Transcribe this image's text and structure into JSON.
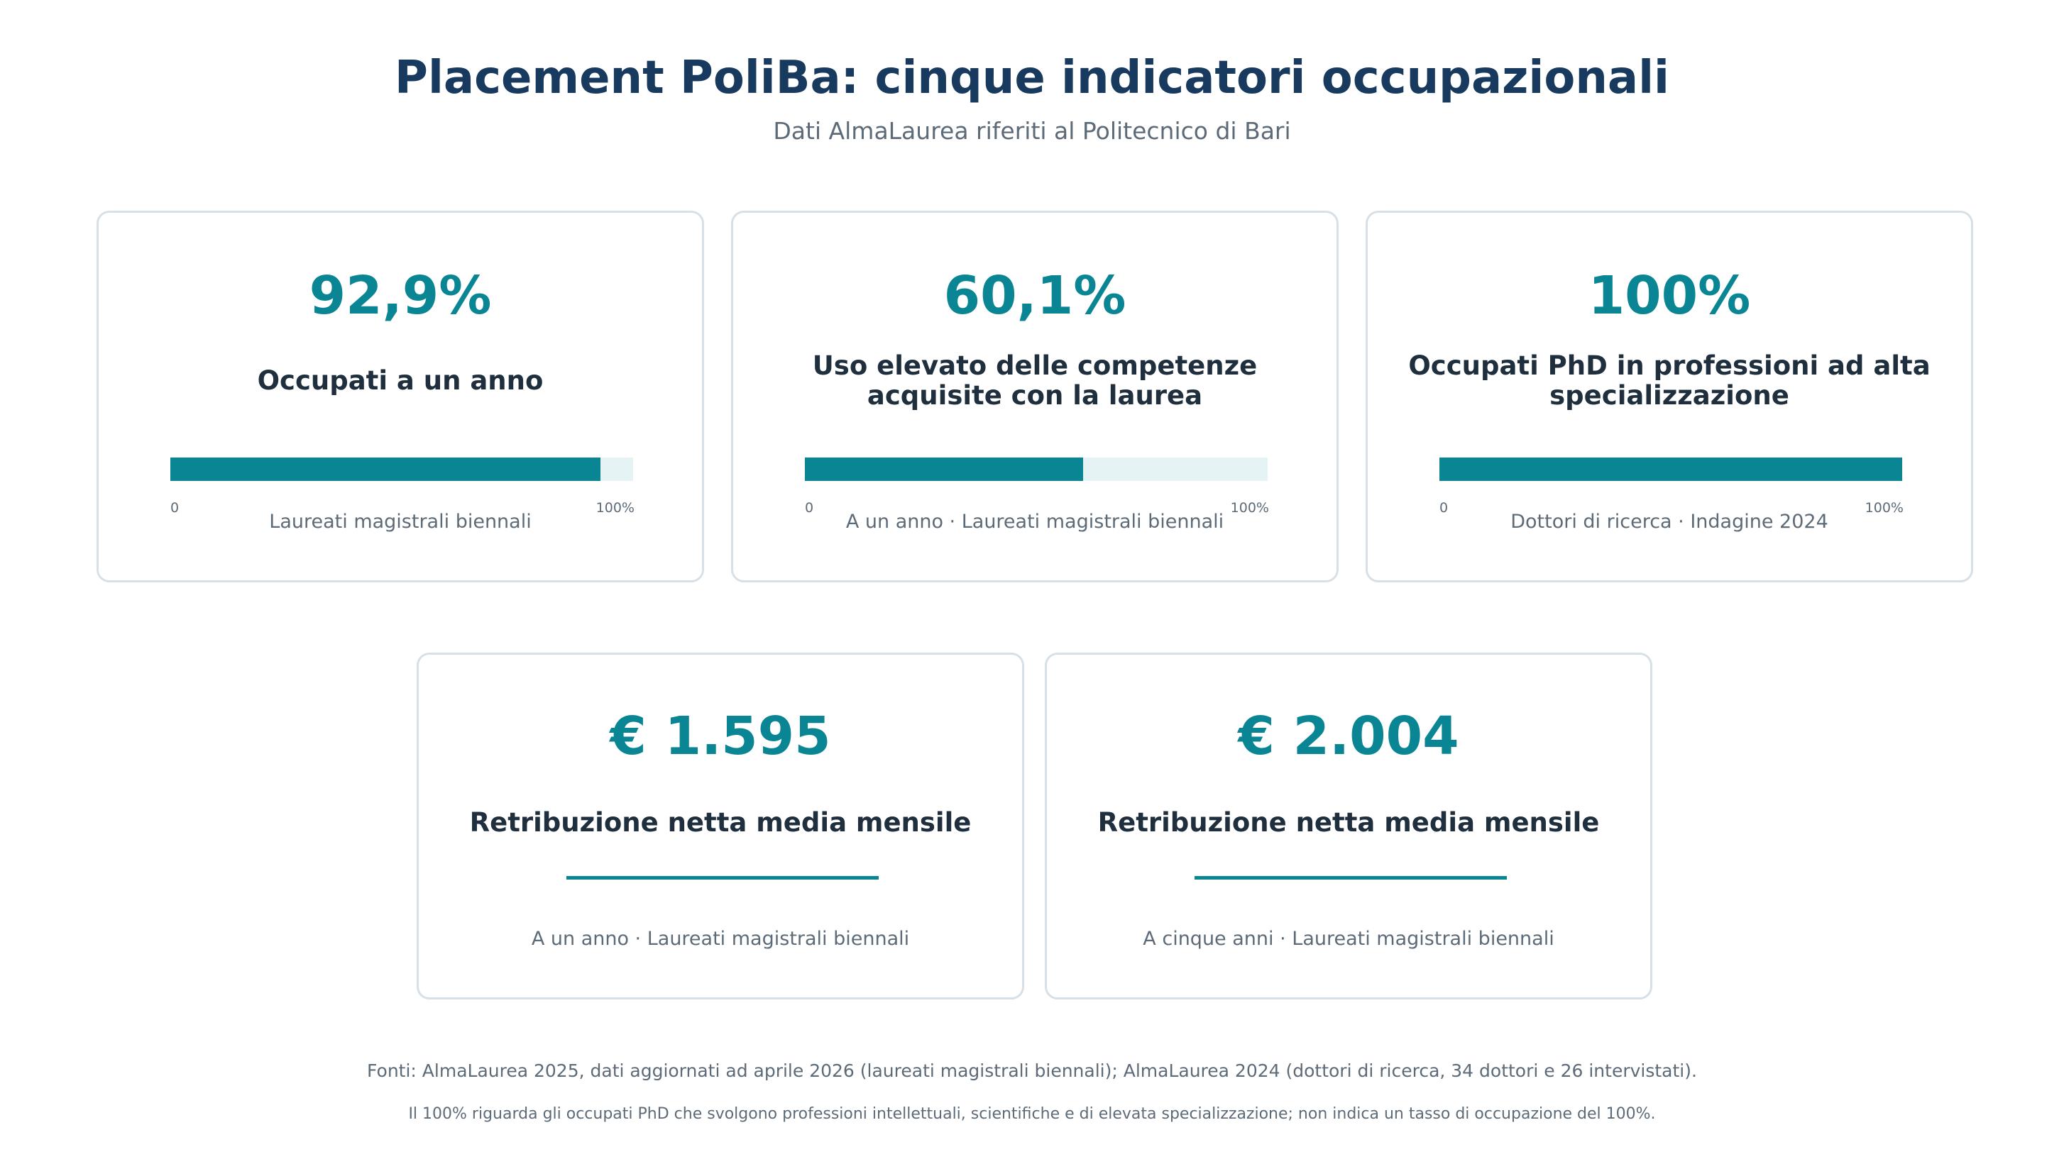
{
  "header": {
    "title": "Placement PoliBa: cinque indicatori occupazionali",
    "subtitle": "Dati AlmaLaurea riferiti al Politecnico di Bari"
  },
  "colors": {
    "accent": "#0a8594",
    "title": "#173a5e",
    "muted": "#5d6b78",
    "track": "#e6f3f5",
    "border": "#d6e0e6"
  },
  "cards": [
    {
      "value": "92,9%",
      "label": "Occupati a un anno",
      "bar_fraction": 0.929,
      "scale_min": "0",
      "scale_max": "100%",
      "note": "Laureati magistrali biennali"
    },
    {
      "value": "60,1%",
      "label": "Uso elevato delle competenze acquisite con la laurea",
      "bar_fraction": 0.601,
      "scale_min": "0",
      "scale_max": "100%",
      "note": "A un anno · Laureati magistrali biennali"
    },
    {
      "value": "100%",
      "label": "Occupati PhD in professioni ad alta specializzazione",
      "bar_fraction": 1.0,
      "scale_min": "0",
      "scale_max": "100%",
      "note": "Dottori di ricerca · Indagine 2024"
    },
    {
      "value": "€ 1.595",
      "label": "Retribuzione netta media mensile",
      "note": "A un anno · Laureati magistrali biennali"
    },
    {
      "value": "€ 2.004",
      "label": "Retribuzione netta media mensile",
      "note": "A cinque anni · Laureati magistrali biennali"
    }
  ],
  "footer": {
    "sources": "Fonti: AlmaLaurea 2025, dati aggiornati ad aprile 2026 (laureati magistrali biennali); AlmaLaurea 2024 (dottori di ricerca, 34 dottori e 26 intervistati).",
    "disclaimer": "Il 100% riguarda gli occupati PhD che svolgono professioni intellettuali, scientifiche e di elevata specializzazione; non indica un tasso di occupazione del 100%."
  }
}
